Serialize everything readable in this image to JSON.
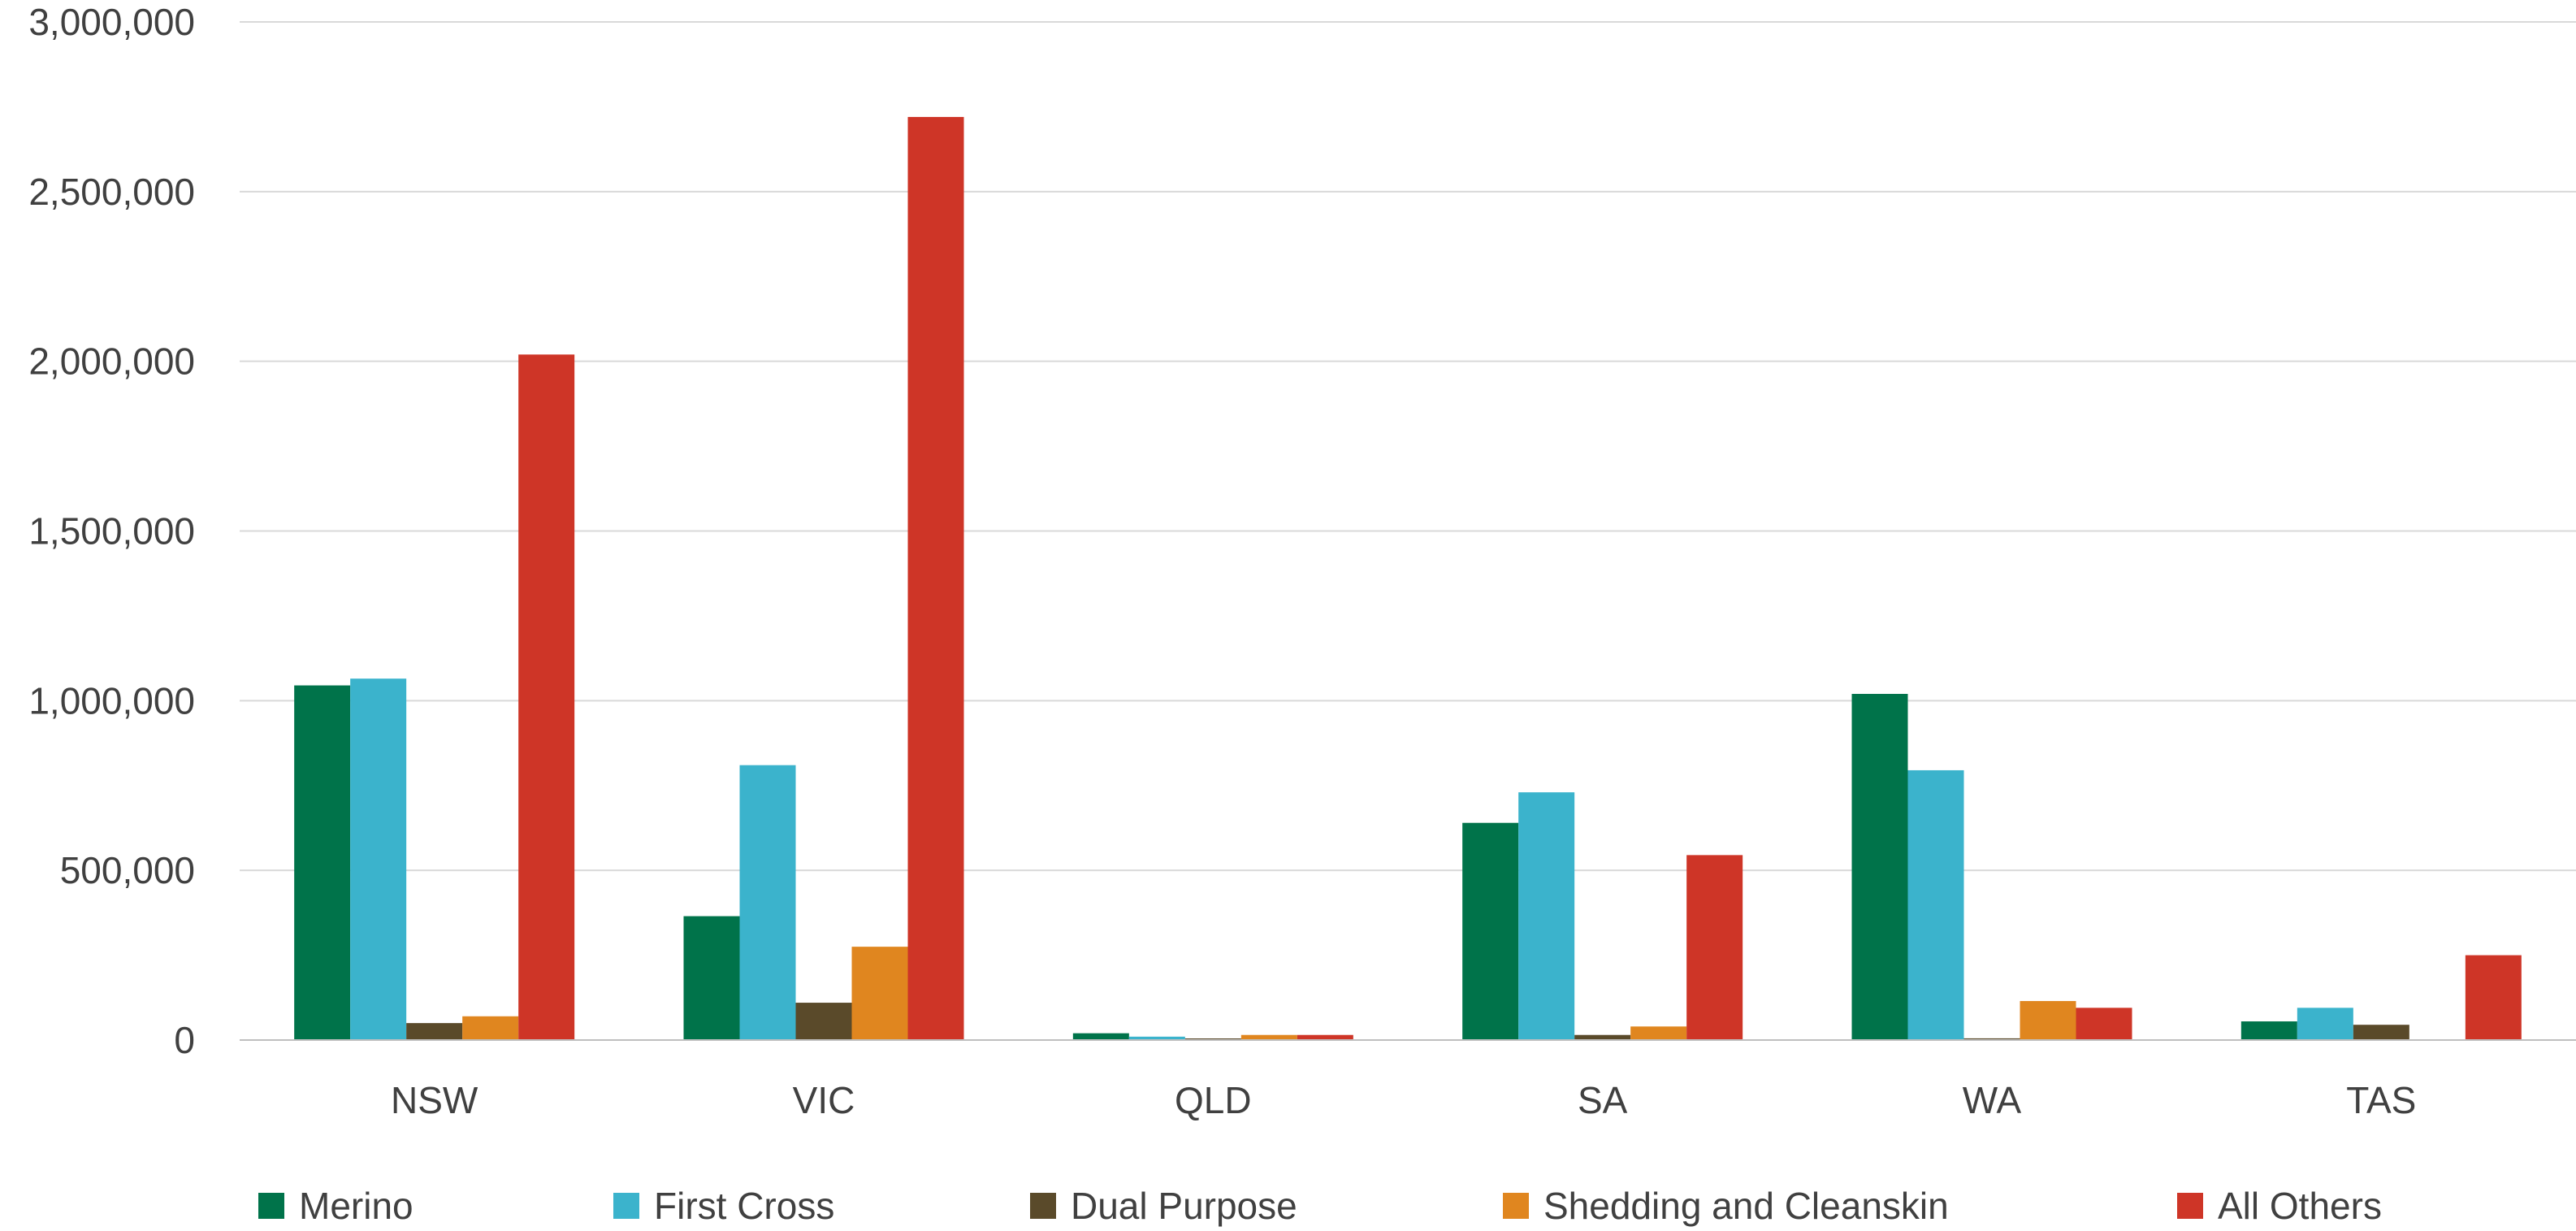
{
  "chart_data": {
    "type": "bar",
    "title": "",
    "xlabel": "",
    "ylabel": "",
    "categories": [
      "NSW",
      "VIC",
      "QLD",
      "SA",
      "WA",
      "TAS"
    ],
    "series": [
      {
        "name": "Merino",
        "color": "#00734A",
        "values": [
          1045000,
          365000,
          20000,
          640000,
          1020000,
          55000
        ]
      },
      {
        "name": "First Cross",
        "color": "#3BB3CC",
        "values": [
          1065000,
          810000,
          10000,
          730000,
          795000,
          95000
        ]
      },
      {
        "name": "Dual Purpose",
        "color": "#5A4A2A",
        "values": [
          50000,
          110000,
          1000,
          15000,
          5000,
          45000
        ]
      },
      {
        "name": "Shedding and Cleanskin",
        "color": "#E0861F",
        "values": [
          70000,
          275000,
          15000,
          40000,
          115000,
          0
        ]
      },
      {
        "name": "All Others",
        "color": "#CE3527",
        "values": [
          2020000,
          2720000,
          15000,
          545000,
          95000,
          250000
        ]
      }
    ],
    "ylim": [
      0,
      3000000
    ],
    "yticks": [
      0,
      500000,
      1000000,
      1500000,
      2000000,
      2500000,
      3000000
    ],
    "ytick_labels": [
      "0",
      "500,000",
      "1,000,000",
      "1,500,000",
      "2,000,000",
      "2,500,000",
      "3,000,000"
    ],
    "grid": true,
    "legend_position": "bottom",
    "colors": {
      "grid": "#D9D9D9",
      "axis": "#BFBFBF",
      "text": "#404040"
    }
  }
}
